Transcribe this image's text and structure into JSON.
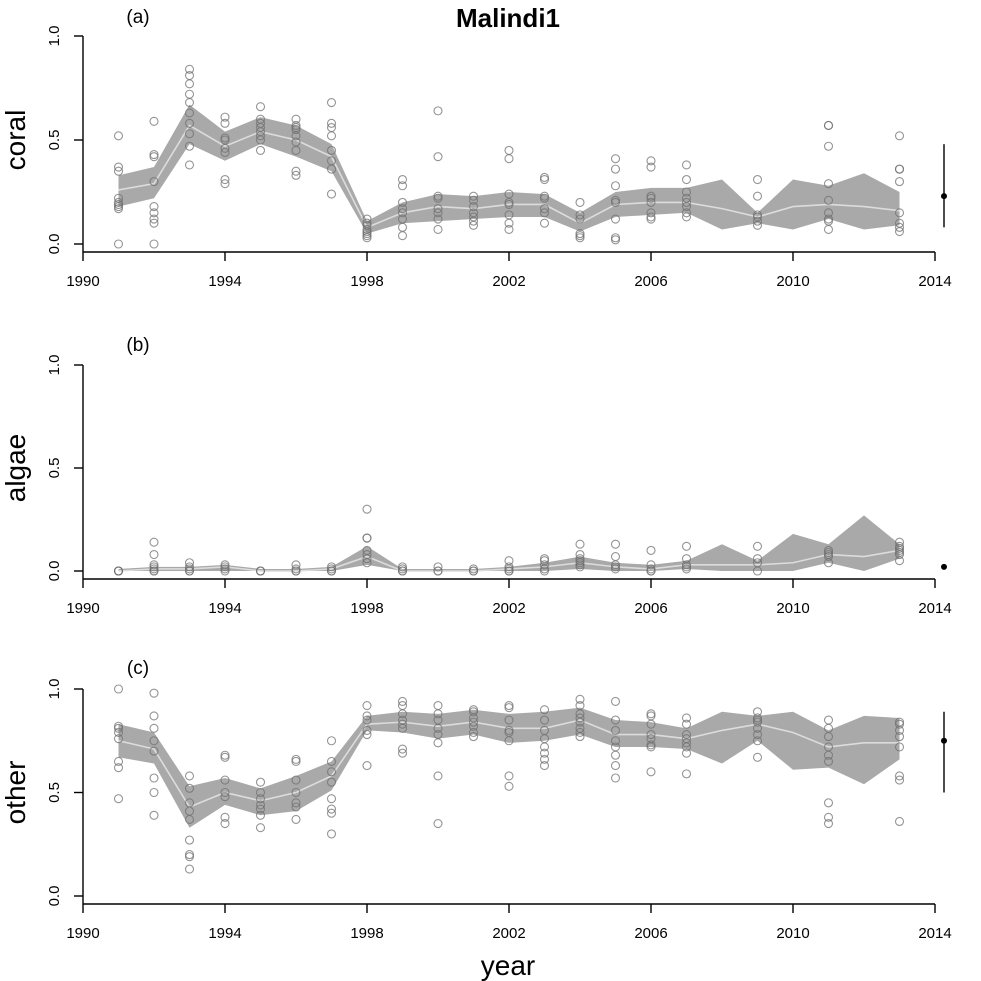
{
  "chart_data": [
    {
      "type": "scatter",
      "panel_label": "(a)",
      "title": "Malindi1",
      "ylabel": "coral",
      "xlabel": "",
      "xlim": [
        1990,
        2014
      ],
      "ylim": [
        0,
        1
      ],
      "xticks": [
        "1990",
        "1994",
        "1998",
        "2002",
        "2006",
        "2010",
        "2014"
      ],
      "yticks": [
        "0.0",
        "0.5",
        "1.0"
      ],
      "band": {
        "x": [
          1991,
          1992,
          1993,
          1994,
          1995,
          1996,
          1997,
          1998,
          1999,
          2000,
          2001,
          2002,
          2003,
          2004,
          2005,
          2006,
          2007,
          2008,
          2009,
          2010,
          2011,
          2012,
          2013
        ],
        "lower": [
          0.18,
          0.22,
          0.48,
          0.4,
          0.48,
          0.42,
          0.35,
          0.05,
          0.1,
          0.11,
          0.12,
          0.13,
          0.13,
          0.06,
          0.13,
          0.14,
          0.15,
          0.07,
          0.1,
          0.07,
          0.12,
          0.07,
          0.09
        ],
        "upper": [
          0.33,
          0.37,
          0.67,
          0.54,
          0.61,
          0.57,
          0.48,
          0.11,
          0.2,
          0.24,
          0.23,
          0.25,
          0.24,
          0.15,
          0.25,
          0.27,
          0.27,
          0.31,
          0.15,
          0.31,
          0.28,
          0.34,
          0.25
        ],
        "mean": [
          0.26,
          0.29,
          0.57,
          0.47,
          0.54,
          0.5,
          0.42,
          0.08,
          0.15,
          0.18,
          0.17,
          0.19,
          0.19,
          0.1,
          0.19,
          0.2,
          0.2,
          0.17,
          0.13,
          0.18,
          0.19,
          0.18,
          0.16
        ]
      },
      "points": [
        {
          "x": 1991,
          "y": [
            0.0,
            0.52,
            0.37,
            0.35,
            0.22,
            0.2,
            0.19,
            0.18,
            0.17
          ]
        },
        {
          "x": 1992,
          "y": [
            0.59,
            0.43,
            0.42,
            0.3,
            0.18,
            0.15,
            0.12,
            0.1,
            0.0
          ]
        },
        {
          "x": 1993,
          "y": [
            0.84,
            0.81,
            0.77,
            0.72,
            0.68,
            0.63,
            0.58,
            0.53,
            0.47,
            0.38
          ]
        },
        {
          "x": 1994,
          "y": [
            0.61,
            0.58,
            0.51,
            0.5,
            0.46,
            0.44,
            0.31,
            0.29
          ]
        },
        {
          "x": 1995,
          "y": [
            0.66,
            0.6,
            0.58,
            0.56,
            0.54,
            0.52,
            0.5,
            0.45
          ]
        },
        {
          "x": 1996,
          "y": [
            0.6,
            0.57,
            0.56,
            0.55,
            0.52,
            0.49,
            0.45,
            0.35,
            0.33
          ]
        },
        {
          "x": 1997,
          "y": [
            0.68,
            0.58,
            0.56,
            0.52,
            0.45,
            0.4,
            0.36,
            0.24
          ]
        },
        {
          "x": 1998,
          "y": [
            0.12,
            0.1,
            0.09,
            0.07,
            0.06,
            0.05,
            0.04,
            0.03
          ]
        },
        {
          "x": 1999,
          "y": [
            0.31,
            0.28,
            0.2,
            0.17,
            0.15,
            0.12,
            0.08,
            0.04
          ]
        },
        {
          "x": 2000,
          "y": [
            0.64,
            0.42,
            0.23,
            0.22,
            0.17,
            0.15,
            0.12,
            0.07
          ]
        },
        {
          "x": 2001,
          "y": [
            0.23,
            0.21,
            0.18,
            0.15,
            0.13,
            0.11,
            0.09
          ]
        },
        {
          "x": 2002,
          "y": [
            0.45,
            0.41,
            0.24,
            0.2,
            0.19,
            0.14,
            0.1,
            0.07
          ]
        },
        {
          "x": 2003,
          "y": [
            0.32,
            0.31,
            0.23,
            0.22,
            0.17,
            0.15,
            0.1
          ]
        },
        {
          "x": 2004,
          "y": [
            0.2,
            0.14,
            0.12,
            0.05,
            0.04,
            0.03
          ]
        },
        {
          "x": 2005,
          "y": [
            0.41,
            0.36,
            0.28,
            0.21,
            0.2,
            0.12,
            0.03,
            0.02
          ]
        },
        {
          "x": 2006,
          "y": [
            0.4,
            0.37,
            0.23,
            0.22,
            0.2,
            0.15,
            0.13,
            0.12
          ]
        },
        {
          "x": 2007,
          "y": [
            0.38,
            0.31,
            0.25,
            0.22,
            0.2,
            0.18,
            0.15,
            0.13
          ]
        },
        {
          "x": 2009,
          "y": [
            0.31,
            0.23,
            0.14,
            0.13,
            0.11,
            0.09
          ]
        },
        {
          "x": 2011,
          "y": [
            0.57,
            0.57,
            0.47,
            0.29,
            0.21,
            0.15,
            0.12,
            0.11,
            0.07
          ]
        },
        {
          "x": 2013,
          "y": [
            0.52,
            0.36,
            0.36,
            0.3,
            0.15,
            0.1,
            0.08,
            0.06
          ]
        }
      ],
      "error_bar": {
        "y": 0.23,
        "low": 0.08,
        "high": 0.48
      }
    },
    {
      "type": "scatter",
      "panel_label": "(b)",
      "title": "",
      "ylabel": "algae",
      "xlabel": "",
      "xlim": [
        1990,
        2014
      ],
      "ylim": [
        0,
        1
      ],
      "xticks": [
        "1990",
        "1994",
        "1998",
        "2002",
        "2006",
        "2010",
        "2014"
      ],
      "yticks": [
        "0.0",
        "0.5",
        "1.0"
      ],
      "band": {
        "x": [
          1991,
          1992,
          1993,
          1994,
          1995,
          1996,
          1997,
          1998,
          1999,
          2000,
          2001,
          2002,
          2003,
          2004,
          2005,
          2006,
          2007,
          2008,
          2009,
          2010,
          2011,
          2012,
          2013
        ],
        "lower": [
          0.0,
          0.0,
          0.0,
          0.0,
          0.0,
          0.0,
          0.0,
          0.03,
          0.0,
          0.0,
          0.0,
          0.0,
          0.0,
          0.01,
          0.0,
          0.0,
          0.01,
          0.0,
          0.0,
          0.0,
          0.04,
          0.0,
          0.06
        ],
        "upper": [
          0.01,
          0.02,
          0.02,
          0.03,
          0.01,
          0.01,
          0.02,
          0.12,
          0.01,
          0.01,
          0.01,
          0.02,
          0.04,
          0.07,
          0.04,
          0.03,
          0.05,
          0.13,
          0.05,
          0.18,
          0.13,
          0.27,
          0.13
        ],
        "mean": [
          0.0,
          0.01,
          0.01,
          0.02,
          0.0,
          0.0,
          0.01,
          0.07,
          0.0,
          0.0,
          0.0,
          0.01,
          0.02,
          0.04,
          0.02,
          0.01,
          0.03,
          0.03,
          0.03,
          0.04,
          0.08,
          0.07,
          0.1
        ]
      },
      "points": [
        {
          "x": 1991,
          "y": [
            0.0,
            0.0,
            0.0,
            0.0
          ]
        },
        {
          "x": 1992,
          "y": [
            0.14,
            0.08,
            0.03,
            0.02,
            0.01,
            0.0,
            0.0
          ]
        },
        {
          "x": 1993,
          "y": [
            0.04,
            0.02,
            0.01,
            0.0,
            0.0
          ]
        },
        {
          "x": 1994,
          "y": [
            0.03,
            0.02,
            0.01,
            0.0
          ]
        },
        {
          "x": 1995,
          "y": [
            0.0,
            0.0,
            0.0
          ]
        },
        {
          "x": 1996,
          "y": [
            0.03,
            0.01,
            0.0,
            0.0
          ]
        },
        {
          "x": 1997,
          "y": [
            0.02,
            0.01,
            0.0,
            0.0
          ]
        },
        {
          "x": 1998,
          "y": [
            0.3,
            0.16,
            0.16,
            0.1,
            0.08,
            0.06,
            0.04
          ]
        },
        {
          "x": 1999,
          "y": [
            0.02,
            0.01,
            0.0,
            0.0
          ]
        },
        {
          "x": 2000,
          "y": [
            0.02,
            0.0,
            0.0
          ]
        },
        {
          "x": 2001,
          "y": [
            0.01,
            0.0,
            0.0
          ]
        },
        {
          "x": 2002,
          "y": [
            0.05,
            0.02,
            0.01,
            0.0,
            0.0
          ]
        },
        {
          "x": 2003,
          "y": [
            0.06,
            0.05,
            0.03,
            0.01,
            0.0
          ]
        },
        {
          "x": 2004,
          "y": [
            0.13,
            0.08,
            0.06,
            0.05,
            0.04,
            0.03,
            0.02
          ]
        },
        {
          "x": 2005,
          "y": [
            0.13,
            0.07,
            0.03,
            0.02,
            0.01
          ]
        },
        {
          "x": 2006,
          "y": [
            0.1,
            0.03,
            0.01,
            0.0,
            0.0
          ]
        },
        {
          "x": 2007,
          "y": [
            0.12,
            0.06,
            0.03,
            0.02,
            0.01
          ]
        },
        {
          "x": 2009,
          "y": [
            0.12,
            0.06,
            0.04,
            0.0
          ]
        },
        {
          "x": 2011,
          "y": [
            0.1,
            0.09,
            0.08,
            0.07,
            0.04
          ]
        },
        {
          "x": 2013,
          "y": [
            0.14,
            0.12,
            0.11,
            0.1,
            0.09,
            0.08,
            0.05
          ]
        }
      ],
      "error_bar": {
        "y": 0.02,
        "low": 0.02,
        "high": 0.02
      }
    },
    {
      "type": "scatter",
      "panel_label": "(c)",
      "title": "",
      "ylabel": "other",
      "xlabel": "year",
      "xlim": [
        1990,
        2014
      ],
      "ylim": [
        0,
        1
      ],
      "xticks": [
        "1990",
        "1994",
        "1998",
        "2002",
        "2006",
        "2010",
        "2014"
      ],
      "yticks": [
        "0.0",
        "0.5",
        "1.0"
      ],
      "band": {
        "x": [
          1991,
          1992,
          1993,
          1994,
          1995,
          1996,
          1997,
          1998,
          1999,
          2000,
          2001,
          2002,
          2003,
          2004,
          2005,
          2006,
          2007,
          2008,
          2009,
          2010,
          2011,
          2012,
          2013
        ],
        "lower": [
          0.67,
          0.64,
          0.33,
          0.44,
          0.39,
          0.41,
          0.51,
          0.8,
          0.79,
          0.76,
          0.78,
          0.74,
          0.75,
          0.78,
          0.72,
          0.72,
          0.71,
          0.64,
          0.75,
          0.61,
          0.62,
          0.54,
          0.66
        ],
        "upper": [
          0.83,
          0.79,
          0.53,
          0.57,
          0.52,
          0.58,
          0.65,
          0.87,
          0.89,
          0.88,
          0.9,
          0.88,
          0.89,
          0.91,
          0.85,
          0.84,
          0.81,
          0.89,
          0.87,
          0.89,
          0.8,
          0.87,
          0.86
        ],
        "mean": [
          0.75,
          0.71,
          0.43,
          0.5,
          0.46,
          0.5,
          0.58,
          0.83,
          0.84,
          0.82,
          0.84,
          0.81,
          0.81,
          0.85,
          0.78,
          0.78,
          0.76,
          0.8,
          0.83,
          0.79,
          0.72,
          0.74,
          0.74
        ]
      },
      "points": [
        {
          "x": 1991,
          "y": [
            1.0,
            0.82,
            0.81,
            0.79,
            0.76,
            0.65,
            0.62,
            0.47
          ]
        },
        {
          "x": 1992,
          "y": [
            0.98,
            0.87,
            0.81,
            0.75,
            0.7,
            0.57,
            0.5,
            0.39
          ]
        },
        {
          "x": 1993,
          "y": [
            0.58,
            0.52,
            0.45,
            0.41,
            0.37,
            0.27,
            0.2,
            0.19,
            0.13
          ]
        },
        {
          "x": 1994,
          "y": [
            0.68,
            0.67,
            0.56,
            0.5,
            0.48,
            0.38,
            0.35
          ]
        },
        {
          "x": 1995,
          "y": [
            0.55,
            0.5,
            0.47,
            0.44,
            0.42,
            0.39,
            0.33
          ]
        },
        {
          "x": 1996,
          "y": [
            0.66,
            0.65,
            0.56,
            0.5,
            0.45,
            0.43,
            0.37
          ]
        },
        {
          "x": 1997,
          "y": [
            0.75,
            0.65,
            0.6,
            0.55,
            0.47,
            0.42,
            0.4,
            0.3
          ]
        },
        {
          "x": 1998,
          "y": [
            0.92,
            0.87,
            0.85,
            0.8,
            0.78,
            0.63
          ]
        },
        {
          "x": 1999,
          "y": [
            0.94,
            0.92,
            0.88,
            0.85,
            0.83,
            0.81,
            0.71,
            0.69
          ]
        },
        {
          "x": 2000,
          "y": [
            0.92,
            0.88,
            0.85,
            0.81,
            0.78,
            0.74,
            0.58,
            0.35
          ]
        },
        {
          "x": 2001,
          "y": [
            0.9,
            0.89,
            0.86,
            0.84,
            0.82,
            0.79,
            0.77
          ]
        },
        {
          "x": 2002,
          "y": [
            0.92,
            0.91,
            0.85,
            0.8,
            0.79,
            0.75,
            0.58,
            0.53
          ]
        },
        {
          "x": 2003,
          "y": [
            0.9,
            0.85,
            0.8,
            0.76,
            0.72,
            0.69,
            0.66,
            0.63
          ]
        },
        {
          "x": 2004,
          "y": [
            0.95,
            0.92,
            0.88,
            0.86,
            0.84,
            0.81,
            0.79,
            0.77
          ]
        },
        {
          "x": 2005,
          "y": [
            0.94,
            0.85,
            0.8,
            0.75,
            0.72,
            0.68,
            0.63,
            0.57
          ]
        },
        {
          "x": 2006,
          "y": [
            0.88,
            0.87,
            0.83,
            0.78,
            0.76,
            0.73,
            0.72,
            0.6
          ]
        },
        {
          "x": 2007,
          "y": [
            0.86,
            0.83,
            0.78,
            0.76,
            0.74,
            0.72,
            0.69,
            0.59
          ]
        },
        {
          "x": 2009,
          "y": [
            0.89,
            0.86,
            0.85,
            0.84,
            0.81,
            0.78,
            0.75,
            0.67
          ]
        },
        {
          "x": 2011,
          "y": [
            0.85,
            0.81,
            0.77,
            0.72,
            0.68,
            0.65,
            0.45,
            0.38,
            0.35
          ]
        },
        {
          "x": 2013,
          "y": [
            0.84,
            0.83,
            0.8,
            0.77,
            0.72,
            0.58,
            0.56,
            0.36
          ]
        }
      ],
      "error_bar": {
        "y": 0.75,
        "low": 0.5,
        "high": 0.89
      }
    }
  ],
  "colors": {
    "band": "#a9a9a9",
    "mean_line": "#dcdcdc",
    "points": "#707070",
    "axis": "#000000"
  }
}
